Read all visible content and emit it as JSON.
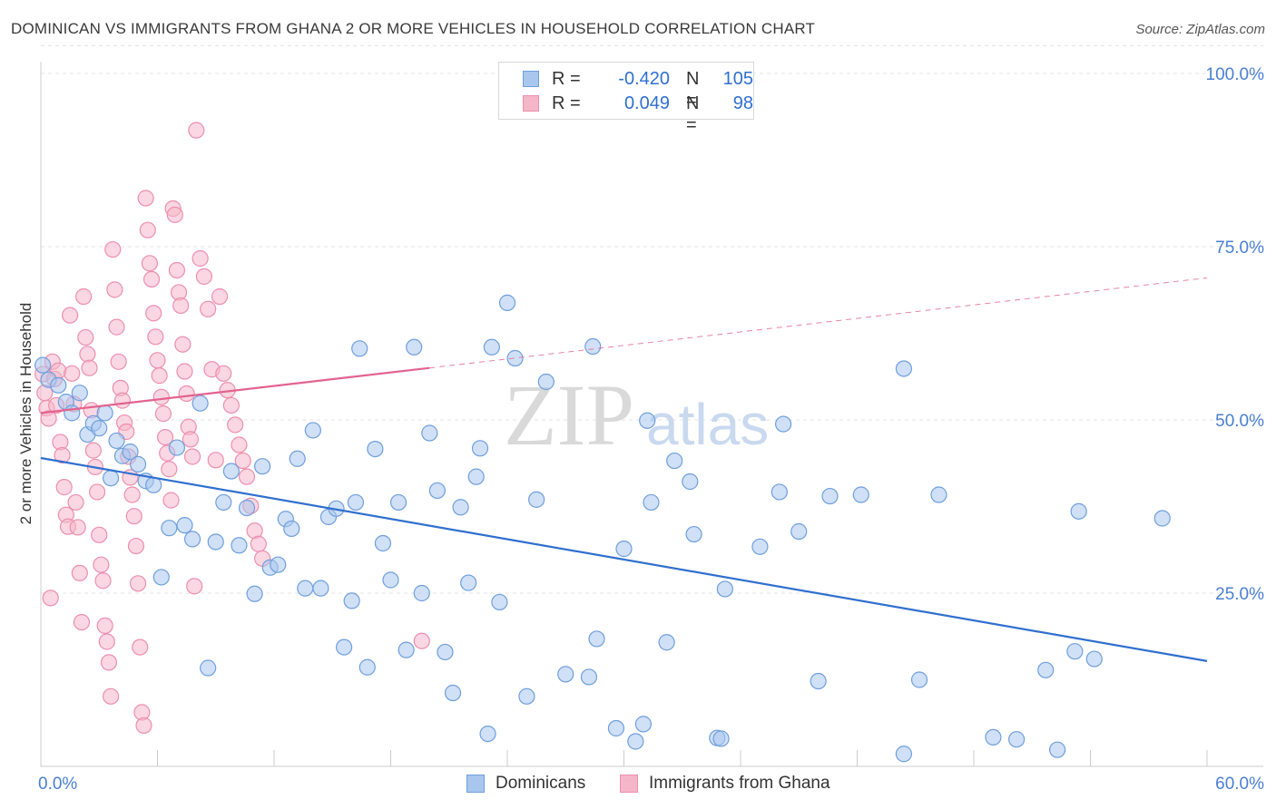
{
  "title": "DOMINICAN VS IMMIGRANTS FROM GHANA 2 OR MORE VEHICLES IN HOUSEHOLD CORRELATION CHART",
  "source": "Source: ZipAtlas.com",
  "colors": {
    "blue_fill": "#a9c6ee",
    "blue_stroke": "#6f9fdc",
    "blue_line": "#2f6fcf",
    "pink_fill": "#f5b6ca",
    "pink_stroke": "#ec8fad",
    "pink_line": "#e2638f",
    "axis_text": "#4a7fd1",
    "grid": "#e3e3e3",
    "watermark": "#d9d9d9"
  },
  "legend": {
    "rows": [
      {
        "r_label": "R =",
        "r_value": "-0.420",
        "n_label": "N =",
        "n_value": "105"
      },
      {
        "r_label": "R =",
        "r_value": "0.049",
        "n_label": "N =",
        "n_value": "98"
      }
    ]
  },
  "bottom_legend": {
    "series1": "Dominicans",
    "series2": "Immigrants from Ghana"
  },
  "watermark": {
    "zip": "ZIP",
    "atlas": "atlas"
  },
  "chart_data": {
    "type": "scatter",
    "title": "DOMINICAN VS IMMIGRANTS FROM GHANA 2 OR MORE VEHICLES IN HOUSEHOLD CORRELATION CHART",
    "xlabel": "",
    "ylabel": "2 or more Vehicles in Household",
    "xlim": [
      0,
      60
    ],
    "ylim": [
      0,
      105
    ],
    "x_tick_labels": {
      "min": "0.0%",
      "max": "60.0%"
    },
    "y_ticks": [
      25,
      50,
      75,
      100
    ],
    "y_tick_labels": [
      "25.0%",
      "50.0%",
      "75.0%",
      "100.0%"
    ],
    "grid": true,
    "legend_position": "top-center",
    "series": [
      {
        "name": "Dominicans",
        "R": -0.42,
        "N": 105,
        "trend": {
          "x0": 0,
          "y0": 44.5,
          "x1": 60,
          "y1": 15.2,
          "solid_until": 60
        },
        "points": [
          [
            0.1,
            57.9
          ],
          [
            0.4,
            55.8
          ],
          [
            0.9,
            55.0
          ],
          [
            1.3,
            52.6
          ],
          [
            1.6,
            51.0
          ],
          [
            2.0,
            53.9
          ],
          [
            2.4,
            47.9
          ],
          [
            2.7,
            49.5
          ],
          [
            3.0,
            48.8
          ],
          [
            3.3,
            51.0
          ],
          [
            3.6,
            41.6
          ],
          [
            3.9,
            47.0
          ],
          [
            4.2,
            44.8
          ],
          [
            4.6,
            45.4
          ],
          [
            5.0,
            43.6
          ],
          [
            5.4,
            41.2
          ],
          [
            5.8,
            40.6
          ],
          [
            6.2,
            27.3
          ],
          [
            6.6,
            34.4
          ],
          [
            7.0,
            46.0
          ],
          [
            7.4,
            34.8
          ],
          [
            7.8,
            32.8
          ],
          [
            8.2,
            52.4
          ],
          [
            8.6,
            14.2
          ],
          [
            9.0,
            32.4
          ],
          [
            9.4,
            38.1
          ],
          [
            9.8,
            42.6
          ],
          [
            10.2,
            31.9
          ],
          [
            10.6,
            37.3
          ],
          [
            11.0,
            24.9
          ],
          [
            11.4,
            43.3
          ],
          [
            11.8,
            28.7
          ],
          [
            12.2,
            29.1
          ],
          [
            12.6,
            35.7
          ],
          [
            12.9,
            34.3
          ],
          [
            13.2,
            44.4
          ],
          [
            13.6,
            25.7
          ],
          [
            14.0,
            48.5
          ],
          [
            14.4,
            25.7
          ],
          [
            14.8,
            36.0
          ],
          [
            15.2,
            37.2
          ],
          [
            15.6,
            17.2
          ],
          [
            16.0,
            23.9
          ],
          [
            16.2,
            38.1
          ],
          [
            16.4,
            60.3
          ],
          [
            16.8,
            14.3
          ],
          [
            17.2,
            45.8
          ],
          [
            17.6,
            32.2
          ],
          [
            18.0,
            26.9
          ],
          [
            18.4,
            38.1
          ],
          [
            18.8,
            16.8
          ],
          [
            19.2,
            60.5
          ],
          [
            19.6,
            25.0
          ],
          [
            20.0,
            48.1
          ],
          [
            20.4,
            39.8
          ],
          [
            20.8,
            16.5
          ],
          [
            21.2,
            10.6
          ],
          [
            21.6,
            37.4
          ],
          [
            22.0,
            26.5
          ],
          [
            22.4,
            41.8
          ],
          [
            22.6,
            45.9
          ],
          [
            23.0,
            4.7
          ],
          [
            23.2,
            60.5
          ],
          [
            23.6,
            23.7
          ],
          [
            24.0,
            66.9
          ],
          [
            24.4,
            58.9
          ],
          [
            25.0,
            10.1
          ],
          [
            25.5,
            38.5
          ],
          [
            26.0,
            55.5
          ],
          [
            27.0,
            13.3
          ],
          [
            28.2,
            12.9
          ],
          [
            28.4,
            60.6
          ],
          [
            28.6,
            18.4
          ],
          [
            29.6,
            5.5
          ],
          [
            30.0,
            31.4
          ],
          [
            30.6,
            3.6
          ],
          [
            31.0,
            6.1
          ],
          [
            31.2,
            49.9
          ],
          [
            31.4,
            38.1
          ],
          [
            32.2,
            17.9
          ],
          [
            32.6,
            44.1
          ],
          [
            33.4,
            41.1
          ],
          [
            33.6,
            33.5
          ],
          [
            34.8,
            4.1
          ],
          [
            35.0,
            4.0
          ],
          [
            35.2,
            25.6
          ],
          [
            37.0,
            31.7
          ],
          [
            38.0,
            39.6
          ],
          [
            38.2,
            49.4
          ],
          [
            39.0,
            33.9
          ],
          [
            40.0,
            12.3
          ],
          [
            40.6,
            39.0
          ],
          [
            42.2,
            39.2
          ],
          [
            44.4,
            1.8
          ],
          [
            44.4,
            57.4
          ],
          [
            45.2,
            12.5
          ],
          [
            46.2,
            39.2
          ],
          [
            49.0,
            4.2
          ],
          [
            50.2,
            3.9
          ],
          [
            51.7,
            13.9
          ],
          [
            52.3,
            2.4
          ],
          [
            53.2,
            16.6
          ],
          [
            53.4,
            36.8
          ],
          [
            54.2,
            15.5
          ],
          [
            57.7,
            35.8
          ]
        ]
      },
      {
        "name": "Immigrants from Ghana",
        "R": 0.049,
        "N": 98,
        "trend": {
          "x0": 0,
          "y0": 51.0,
          "x1": 60,
          "y1": 70.5,
          "solid_until": 20
        },
        "points": [
          [
            0.1,
            56.6
          ],
          [
            0.2,
            53.9
          ],
          [
            0.3,
            51.7
          ],
          [
            0.4,
            50.2
          ],
          [
            0.5,
            24.3
          ],
          [
            0.6,
            58.4
          ],
          [
            0.7,
            55.9
          ],
          [
            0.8,
            52.1
          ],
          [
            0.9,
            57.1
          ],
          [
            1.0,
            46.8
          ],
          [
            1.1,
            44.9
          ],
          [
            1.2,
            40.3
          ],
          [
            1.3,
            36.3
          ],
          [
            1.4,
            34.6
          ],
          [
            1.5,
            65.1
          ],
          [
            1.6,
            56.7
          ],
          [
            1.7,
            52.3
          ],
          [
            1.8,
            38.1
          ],
          [
            1.9,
            34.5
          ],
          [
            2.0,
            27.9
          ],
          [
            2.1,
            20.8
          ],
          [
            2.2,
            67.8
          ],
          [
            2.3,
            61.9
          ],
          [
            2.4,
            59.5
          ],
          [
            2.5,
            57.5
          ],
          [
            2.6,
            51.4
          ],
          [
            2.7,
            45.6
          ],
          [
            2.8,
            43.2
          ],
          [
            2.9,
            39.6
          ],
          [
            3.0,
            33.4
          ],
          [
            3.1,
            29.1
          ],
          [
            3.2,
            26.8
          ],
          [
            3.3,
            20.3
          ],
          [
            3.4,
            18.0
          ],
          [
            3.5,
            15.0
          ],
          [
            3.6,
            10.1
          ],
          [
            3.7,
            74.6
          ],
          [
            3.8,
            68.8
          ],
          [
            3.9,
            63.4
          ],
          [
            4.0,
            58.4
          ],
          [
            4.1,
            54.6
          ],
          [
            4.2,
            52.8
          ],
          [
            4.3,
            49.6
          ],
          [
            4.4,
            48.3
          ],
          [
            4.5,
            44.7
          ],
          [
            4.6,
            41.7
          ],
          [
            4.7,
            39.2
          ],
          [
            4.8,
            36.1
          ],
          [
            4.9,
            31.8
          ],
          [
            5.0,
            26.4
          ],
          [
            5.1,
            17.2
          ],
          [
            5.2,
            7.8
          ],
          [
            5.3,
            5.9
          ],
          [
            5.4,
            82.0
          ],
          [
            5.5,
            77.4
          ],
          [
            5.6,
            72.6
          ],
          [
            5.7,
            70.3
          ],
          [
            5.8,
            65.4
          ],
          [
            5.9,
            62.0
          ],
          [
            6.0,
            58.6
          ],
          [
            6.1,
            56.4
          ],
          [
            6.2,
            53.3
          ],
          [
            6.3,
            50.9
          ],
          [
            6.4,
            47.5
          ],
          [
            6.5,
            45.2
          ],
          [
            6.6,
            42.9
          ],
          [
            6.7,
            38.4
          ],
          [
            6.8,
            80.5
          ],
          [
            6.9,
            79.6
          ],
          [
            7.0,
            71.6
          ],
          [
            7.1,
            68.4
          ],
          [
            7.2,
            66.5
          ],
          [
            7.3,
            60.9
          ],
          [
            7.4,
            57.0
          ],
          [
            7.5,
            53.8
          ],
          [
            7.6,
            49.0
          ],
          [
            7.7,
            47.2
          ],
          [
            7.8,
            44.7
          ],
          [
            7.9,
            26.0
          ],
          [
            8.0,
            91.8
          ],
          [
            8.2,
            73.3
          ],
          [
            8.4,
            70.7
          ],
          [
            8.6,
            66.0
          ],
          [
            8.8,
            57.3
          ],
          [
            9.0,
            44.2
          ],
          [
            9.2,
            67.8
          ],
          [
            9.4,
            56.7
          ],
          [
            9.6,
            54.3
          ],
          [
            9.8,
            52.1
          ],
          [
            10.0,
            49.3
          ],
          [
            10.2,
            46.4
          ],
          [
            10.4,
            44.1
          ],
          [
            10.6,
            41.8
          ],
          [
            10.8,
            37.6
          ],
          [
            11.0,
            34.0
          ],
          [
            11.2,
            32.1
          ],
          [
            11.4,
            30.0
          ],
          [
            19.6,
            18.1
          ]
        ]
      }
    ]
  }
}
